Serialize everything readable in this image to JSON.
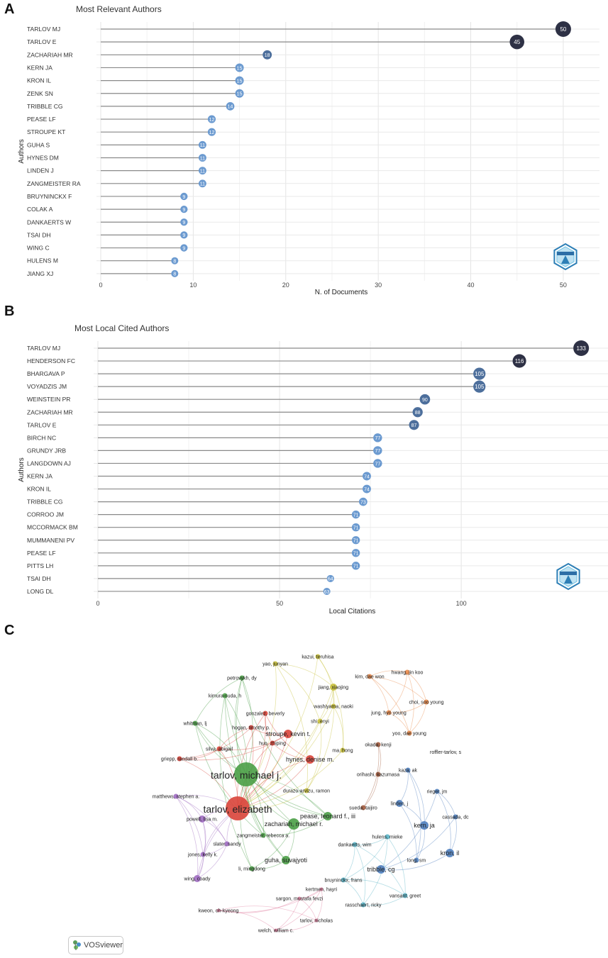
{
  "panels": {
    "a": "A",
    "b": "B",
    "c": "C"
  },
  "chart_data": [
    {
      "type": "lollipop",
      "title": "Most Relevant Authors",
      "xlabel": "N. of Documents",
      "ylabel": "Authors",
      "xlim": [
        0,
        52
      ],
      "xticks": [
        0,
        10,
        20,
        30,
        40,
        50
      ],
      "grid": true,
      "categories": [
        "TARLOV MJ",
        "TARLOV E",
        "ZACHARIAH MR",
        "KERN JA",
        "KRON IL",
        "ZENK SN",
        "TRIBBLE CG",
        "PEASE LF",
        "STROUPE KT",
        "GUHA S",
        "HYNES DM",
        "LINDEN J",
        "ZANGMEISTER RA",
        "BRUYNINCKX F",
        "COLAK A",
        "DANKAERTS W",
        "TSAI DH",
        "WING C",
        "HULENS M",
        "JIANG XJ"
      ],
      "values": [
        50,
        45,
        18,
        15,
        15,
        15,
        14,
        12,
        12,
        11,
        11,
        11,
        11,
        9,
        9,
        9,
        9,
        9,
        8,
        8
      ]
    },
    {
      "type": "lollipop",
      "title": "Most Local Cited Authors",
      "xlabel": "Local Citations",
      "ylabel": "Authors",
      "xlim": [
        0,
        140
      ],
      "xticks": [
        0,
        50,
        100
      ],
      "grid": true,
      "categories": [
        "TARLOV MJ",
        "HENDERSON FC",
        "BHARGAVA P",
        "VOYADZIS JM",
        "WEINSTEIN PR",
        "ZACHARIAH MR",
        "TARLOV E",
        "BIRCH NC",
        "GRUNDY JRB",
        "LANGDOWN AJ",
        "KERN JA",
        "KRON IL",
        "TRIBBLE CG",
        "CORROO JM",
        "MCCORMACK BM",
        "MUMMANENI PV",
        "PEASE LF",
        "PITTS LH",
        "TSAI DH",
        "LONG DL"
      ],
      "values": [
        133,
        116,
        105,
        105,
        90,
        88,
        87,
        77,
        77,
        77,
        74,
        74,
        73,
        71,
        71,
        71,
        71,
        71,
        64,
        63
      ]
    },
    {
      "type": "network",
      "software": "VOSviewer",
      "clusters": {
        "red": "#d9443a",
        "green": "#4a9e46",
        "blue": "#4f7fbf",
        "yellow": "#c8c03a",
        "purple": "#a06cc2",
        "cyan": "#5ab4c6",
        "orange": "#e9894a",
        "pink": "#e07fa0",
        "brown": "#a25a3c"
      },
      "nodes": [
        {
          "label": "tarlov, michael j.",
          "cluster": "green",
          "weight": 10
        },
        {
          "label": "tarlov, elizabeth",
          "cluster": "red",
          "weight": 9
        },
        {
          "label": "zachariah, michael r.",
          "cluster": "green",
          "weight": 5
        },
        {
          "label": "stroupe, kevin t.",
          "cluster": "red",
          "weight": 4
        },
        {
          "label": "hynes, denise m.",
          "cluster": "red",
          "weight": 4
        },
        {
          "label": "pease, leonard f., iii",
          "cluster": "green",
          "weight": 4
        },
        {
          "label": "guha, suvajyoti",
          "cluster": "green",
          "weight": 4
        },
        {
          "label": "zangmeister, rebecca a.",
          "cluster": "green",
          "weight": 2
        },
        {
          "label": "li, mingdong",
          "cluster": "green",
          "weight": 2
        },
        {
          "label": "silva, abigail",
          "cluster": "red",
          "weight": 2
        },
        {
          "label": "huo, zhiping",
          "cluster": "red",
          "weight": 2
        },
        {
          "label": "hogan, timothy p.",
          "cluster": "red",
          "weight": 2
        },
        {
          "label": "gonzalez, beverly",
          "cluster": "red",
          "weight": 2
        },
        {
          "label": "griepp, randall b.",
          "cluster": "red",
          "weight": 2
        },
        {
          "label": "whitman, lj",
          "cluster": "green",
          "weight": 2
        },
        {
          "label": "kimura-suda, h",
          "cluster": "green",
          "weight": 2
        },
        {
          "label": "petrovykh, dy",
          "cluster": "green",
          "weight": 2
        },
        {
          "label": "yao, junyan",
          "cluster": "yellow",
          "weight": 2
        },
        {
          "label": "kazui, teruhisa",
          "cluster": "yellow",
          "weight": 2
        },
        {
          "label": "jiang, xiaojing",
          "cluster": "yellow",
          "weight": 3
        },
        {
          "label": "washiyama, naoki",
          "cluster": "yellow",
          "weight": 2
        },
        {
          "label": "shi, enyi",
          "cluster": "yellow",
          "weight": 2
        },
        {
          "label": "ma, hong",
          "cluster": "yellow",
          "weight": 2
        },
        {
          "label": "durazo-arvizu, ramon",
          "cluster": "yellow",
          "weight": 2
        },
        {
          "label": "kim, dae won",
          "cluster": "orange",
          "weight": 2
        },
        {
          "label": "hwang, jin koo",
          "cluster": "orange",
          "weight": 2
        },
        {
          "label": "choi, soo young",
          "cluster": "orange",
          "weight": 2
        },
        {
          "label": "jung, hyo young",
          "cluster": "orange",
          "weight": 2
        },
        {
          "label": "yoo, dae young",
          "cluster": "orange",
          "weight": 2
        },
        {
          "label": "okada, kenji",
          "cluster": "brown",
          "weight": 2
        },
        {
          "label": "orihashi, kazumasa",
          "cluster": "brown",
          "weight": 2
        },
        {
          "label": "sueda, taijiro",
          "cluster": "brown",
          "weight": 2
        },
        {
          "label": "roffler-tarlov, s",
          "cluster": "brown",
          "weight": 1
        },
        {
          "label": "kaza, ak",
          "cluster": "blue",
          "weight": 2
        },
        {
          "label": "rieger, jm",
          "cluster": "blue",
          "weight": 2
        },
        {
          "label": "linden, j",
          "cluster": "blue",
          "weight": 3
        },
        {
          "label": "cassada, dc",
          "cluster": "blue",
          "weight": 2
        },
        {
          "label": "kern, ja",
          "cluster": "blue",
          "weight": 4
        },
        {
          "label": "kron, il",
          "cluster": "blue",
          "weight": 4
        },
        {
          "label": "long, sm",
          "cluster": "blue",
          "weight": 2
        },
        {
          "label": "tribble, cg",
          "cluster": "blue",
          "weight": 4
        },
        {
          "label": "hulens, mieke",
          "cluster": "cyan",
          "weight": 2
        },
        {
          "label": "dankaerts, wim",
          "cluster": "cyan",
          "weight": 2
        },
        {
          "label": "bruyninckx, frans",
          "cluster": "cyan",
          "weight": 2
        },
        {
          "label": "vansant, greet",
          "cluster": "cyan",
          "weight": 2
        },
        {
          "label": "rasschaert, ricky",
          "cluster": "cyan",
          "weight": 2
        },
        {
          "label": "matthews, stephen a.",
          "cluster": "purple",
          "weight": 2
        },
        {
          "label": "powell, lisa m.",
          "cluster": "purple",
          "weight": 3
        },
        {
          "label": "slater, sandy",
          "cluster": "purple",
          "weight": 2
        },
        {
          "label": "jones, kelly k.",
          "cluster": "purple",
          "weight": 2
        },
        {
          "label": "wing, coady",
          "cluster": "purple",
          "weight": 3
        },
        {
          "label": "kertmen, hayri",
          "cluster": "pink",
          "weight": 1
        },
        {
          "label": "sargon, mustafa fevzi",
          "cluster": "pink",
          "weight": 1
        },
        {
          "label": "kweon, oh-kyeong",
          "cluster": "pink",
          "weight": 1
        },
        {
          "label": "tarlov, nicholas",
          "cluster": "pink",
          "weight": 1
        },
        {
          "label": "welch, william c.",
          "cluster": "pink",
          "weight": 1
        }
      ]
    }
  ],
  "logo": {
    "label": "VOSviewer"
  }
}
